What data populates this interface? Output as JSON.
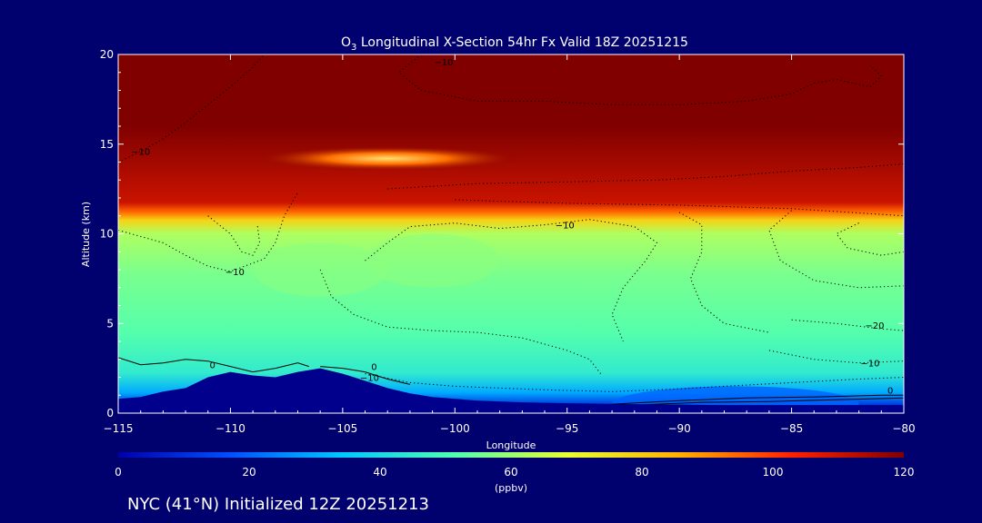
{
  "chart_data": {
    "type": "heatmap",
    "title": "O3 Longitudinal X-Section 54hr  Fx Valid 18Z 20251215",
    "title_parts": {
      "pre": "O",
      "sub": "3",
      "post": " Longitudinal X-Section 54hr  Fx Valid 18Z 20251215"
    },
    "xlabel": "Longitude",
    "ylabel": "Altitude (km)",
    "xlim": [
      -115,
      -80
    ],
    "ylim": [
      0,
      20
    ],
    "x_ticks": [
      -115,
      -110,
      -105,
      -100,
      -95,
      -90,
      -85,
      -80
    ],
    "x_tick_labels": [
      "−115",
      "−110",
      "−105",
      "−100",
      "−95",
      "−90",
      "−85",
      "−80"
    ],
    "y_ticks": [
      0,
      5,
      10,
      15,
      20
    ],
    "y_tick_labels": [
      "0",
      "5",
      "10",
      "15",
      "20"
    ],
    "colorbar": {
      "min": 0,
      "max": 120,
      "ticks": [
        0,
        20,
        40,
        60,
        80,
        100,
        120
      ],
      "tick_labels": [
        "0",
        "20",
        "40",
        "60",
        "80",
        "100",
        "120"
      ],
      "units": "(ppbv)",
      "colors": [
        "#0000a8",
        "#0050ff",
        "#00c8ff",
        "#50ffb0",
        "#e8ff30",
        "#ffb000",
        "#ff2000",
        "#800000"
      ]
    },
    "background_field": {
      "description": "ozone concentration (ppbv) by altitude band",
      "layers": [
        {
          "z_bottom": 0.0,
          "z_top": 0.8,
          "ppbv": 10
        },
        {
          "z_bottom": 0.8,
          "z_top": 1.5,
          "ppbv": 30
        },
        {
          "z_bottom": 1.5,
          "z_top": 3.0,
          "ppbv": 45
        },
        {
          "z_bottom": 3.0,
          "z_top": 6.0,
          "ppbv": 52
        },
        {
          "z_bottom": 6.0,
          "z_top": 9.5,
          "ppbv": 56
        },
        {
          "z_bottom": 9.5,
          "z_top": 10.5,
          "ppbv": 62
        },
        {
          "z_bottom": 10.5,
          "z_top": 11.0,
          "ppbv": 78
        },
        {
          "z_bottom": 11.0,
          "z_top": 11.5,
          "ppbv": 95
        },
        {
          "z_bottom": 11.5,
          "z_top": 12.0,
          "ppbv": 110
        },
        {
          "z_bottom": 12.0,
          "z_top": 20.0,
          "ppbv": 120
        }
      ],
      "lower_ppbv_pocket": {
        "lon_range": [
          -93,
          -82
        ],
        "z_top": 1.0,
        "ppbv": 20
      },
      "higher_ppbv_pockets": [
        {
          "lon": -101,
          "z": 8.5,
          "ppbv": 58
        },
        {
          "lon": -106,
          "z": 8.0,
          "ppbv": 58
        }
      ],
      "stratospheric_dip": {
        "lon": -103,
        "z": 14.2,
        "ppbv": 95
      }
    },
    "terrain": {
      "fill_color": "#00008c",
      "points": [
        [
          -115,
          0.8
        ],
        [
          -114,
          0.9
        ],
        [
          -113,
          1.2
        ],
        [
          -112,
          1.4
        ],
        [
          -111,
          2.0
        ],
        [
          -110,
          2.3
        ],
        [
          -109,
          2.1
        ],
        [
          -108,
          2.0
        ],
        [
          -107,
          2.3
        ],
        [
          -106,
          2.5
        ],
        [
          -105,
          2.2
        ],
        [
          -104,
          1.8
        ],
        [
          -103,
          1.4
        ],
        [
          -102,
          1.1
        ],
        [
          -101,
          0.9
        ],
        [
          -99,
          0.7
        ],
        [
          -97,
          0.6
        ],
        [
          -95,
          0.55
        ],
        [
          -92,
          0.5
        ],
        [
          -88,
          0.45
        ],
        [
          -84,
          0.45
        ],
        [
          -80,
          0.45
        ]
      ]
    },
    "contours": [
      {
        "style": "solid",
        "label": "0",
        "label_pos": [
          -110.8,
          2.7
        ],
        "points": [
          [
            -115,
            3.1
          ],
          [
            -114,
            2.7
          ],
          [
            -113,
            2.8
          ],
          [
            -112,
            3.0
          ],
          [
            -111,
            2.9
          ],
          [
            -110,
            2.6
          ],
          [
            -109,
            2.3
          ],
          [
            -108,
            2.5
          ],
          [
            -107,
            2.8
          ],
          [
            -106.5,
            2.6
          ]
        ]
      },
      {
        "style": "solid",
        "label": "0",
        "label_pos": [
          -103.6,
          2.6
        ],
        "points": [
          [
            -106,
            2.6
          ],
          [
            -105,
            2.5
          ],
          [
            -104,
            2.3
          ],
          [
            -103,
            1.9
          ],
          [
            -102,
            1.6
          ]
        ]
      },
      {
        "style": "solid",
        "label": "0",
        "label_pos": [
          -80.6,
          1.3
        ],
        "points": [
          [
            -93,
            0.5
          ],
          [
            -90,
            0.7
          ],
          [
            -87,
            0.85
          ],
          [
            -84,
            0.9
          ],
          [
            -81,
            1.0
          ],
          [
            -80,
            1.0
          ]
        ]
      },
      {
        "style": "solid",
        "label": "",
        "label_pos": [
          -86,
          0.6
        ],
        "points": [
          [
            -92,
            0.45
          ],
          [
            -89,
            0.6
          ],
          [
            -86,
            0.65
          ],
          [
            -83,
            0.75
          ],
          [
            -80,
            0.85
          ]
        ]
      },
      {
        "style": "dotted",
        "label": "−10",
        "label_pos": [
          -103.8,
          2.0
        ],
        "points": [
          [
            -104,
            2.2
          ],
          [
            -102,
            1.7
          ],
          [
            -100,
            1.5
          ],
          [
            -98,
            1.4
          ],
          [
            -96,
            1.3
          ],
          [
            -93,
            1.2
          ],
          [
            -90,
            1.35
          ],
          [
            -88,
            1.5
          ],
          [
            -85,
            1.7
          ],
          [
            -82,
            1.9
          ],
          [
            -80,
            2.0
          ]
        ]
      },
      {
        "style": "dotted",
        "label": "−10",
        "label_pos": [
          -81.5,
          2.8
        ],
        "points": [
          [
            -86,
            3.5
          ],
          [
            -84,
            3.0
          ],
          [
            -82,
            2.8
          ],
          [
            -80,
            2.9
          ]
        ]
      },
      {
        "style": "dotted",
        "label": "−20",
        "label_pos": [
          -81.3,
          4.9
        ],
        "points": [
          [
            -85,
            5.2
          ],
          [
            -83,
            5.0
          ],
          [
            -81,
            4.7
          ],
          [
            -80,
            4.6
          ]
        ]
      },
      {
        "style": "dotted",
        "label": "−10",
        "label_pos": [
          -109.8,
          7.9
        ],
        "points": [
          [
            -115,
            10.2
          ],
          [
            -113,
            9.5
          ],
          [
            -112,
            8.8
          ],
          [
            -111,
            8.2
          ],
          [
            -110,
            7.9
          ],
          [
            -108.5,
            8.6
          ],
          [
            -108,
            9.5
          ],
          [
            -107.6,
            11.0
          ],
          [
            -107,
            12.3
          ]
        ]
      },
      {
        "style": "dotted",
        "label": "",
        "label_pos": [
          -108,
          10
        ],
        "points": [
          [
            -111,
            11.0
          ],
          [
            -110,
            10.0
          ],
          [
            -109.5,
            9.0
          ],
          [
            -109,
            8.8
          ],
          [
            -108.7,
            9.5
          ],
          [
            -108.8,
            10.5
          ]
        ]
      },
      {
        "style": "dotted",
        "label": "",
        "label_pos": [
          -104,
          7
        ],
        "points": [
          [
            -106,
            8.0
          ],
          [
            -105.5,
            6.5
          ],
          [
            -104.5,
            5.5
          ],
          [
            -103,
            4.8
          ],
          [
            -101,
            4.6
          ],
          [
            -99,
            4.5
          ],
          [
            -97,
            4.2
          ],
          [
            -95,
            3.5
          ],
          [
            -94,
            3.0
          ],
          [
            -93.5,
            2.2
          ]
        ]
      },
      {
        "style": "dotted",
        "label": "−10",
        "label_pos": [
          -95.1,
          10.5
        ],
        "points": [
          [
            -104,
            8.5
          ],
          [
            -103,
            9.5
          ],
          [
            -102,
            10.4
          ],
          [
            -100,
            10.6
          ],
          [
            -98,
            10.3
          ],
          [
            -96,
            10.5
          ],
          [
            -94,
            10.8
          ],
          [
            -92,
            10.4
          ],
          [
            -91,
            9.5
          ],
          [
            -91.5,
            8.5
          ],
          [
            -92.5,
            7.0
          ],
          [
            -93,
            5.5
          ],
          [
            -92.5,
            4.0
          ]
        ]
      },
      {
        "style": "dotted",
        "label": "",
        "label_pos": [
          -89,
          6
        ],
        "points": [
          [
            -90,
            11.2
          ],
          [
            -89,
            10.5
          ],
          [
            -89,
            9.0
          ],
          [
            -89.5,
            7.5
          ],
          [
            -89,
            6.0
          ],
          [
            -88,
            5.0
          ],
          [
            -86,
            4.5
          ]
        ]
      },
      {
        "style": "dotted",
        "label": "",
        "label_pos": [
          -83,
          9
        ],
        "points": [
          [
            -85,
            11.3
          ],
          [
            -86,
            10.2
          ],
          [
            -85.5,
            8.5
          ],
          [
            -84,
            7.4
          ],
          [
            -82,
            7.0
          ],
          [
            -80,
            7.1
          ]
        ]
      },
      {
        "style": "dotted",
        "label": "",
        "label_pos": [
          -82,
          10
        ],
        "points": [
          [
            -82,
            10.6
          ],
          [
            -83,
            10.0
          ],
          [
            -82.5,
            9.2
          ],
          [
            -81,
            8.8
          ],
          [
            -80,
            9.0
          ]
        ]
      },
      {
        "style": "dotted",
        "label": "−10",
        "label_pos": [
          -114,
          14.6
        ],
        "points": [
          [
            -115,
            14.0
          ],
          [
            -114,
            14.6
          ],
          [
            -113,
            15.3
          ],
          [
            -112,
            16.2
          ],
          [
            -111,
            17.2
          ],
          [
            -110,
            18.2
          ],
          [
            -109,
            19.3
          ],
          [
            -108.5,
            20.0
          ]
        ]
      },
      {
        "style": "dotted",
        "label": "−10",
        "label_pos": [
          -100.5,
          19.6
        ],
        "points": [
          [
            -101.5,
            20.0
          ],
          [
            -102.5,
            19.0
          ],
          [
            -101.5,
            18.0
          ],
          [
            -99,
            17.4
          ],
          [
            -96,
            17.4
          ],
          [
            -93,
            17.2
          ],
          [
            -90,
            17.2
          ],
          [
            -87,
            17.4
          ],
          [
            -85,
            17.8
          ],
          [
            -84,
            18.4
          ],
          [
            -83,
            18.6
          ],
          [
            -81.5,
            18.2
          ],
          [
            -81,
            18.8
          ],
          [
            -81.5,
            19.4
          ]
        ]
      },
      {
        "style": "dotted",
        "label": "",
        "label_pos": [
          -90,
          13
        ],
        "points": [
          [
            -103,
            12.5
          ],
          [
            -99,
            12.8
          ],
          [
            -95,
            12.9
          ],
          [
            -91,
            13.0
          ],
          [
            -88,
            13.2
          ],
          [
            -85,
            13.5
          ],
          [
            -82,
            13.7
          ],
          [
            -80,
            13.9
          ]
        ]
      },
      {
        "style": "dotted",
        "label": "",
        "label_pos": [
          -85,
          11
        ],
        "points": [
          [
            -100,
            11.9
          ],
          [
            -95,
            11.7
          ],
          [
            -90,
            11.6
          ],
          [
            -85,
            11.4
          ],
          [
            -80,
            11.0
          ]
        ]
      }
    ]
  },
  "footer": {
    "location_text": "NYC (41°N) Initialized 12Z 20251213"
  }
}
